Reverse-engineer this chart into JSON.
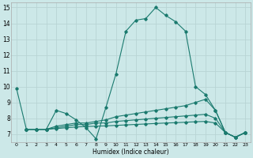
{
  "title": "",
  "xlabel": "Humidex (Indice chaleur)",
  "ylabel": "",
  "background_color": "#cce8e8",
  "grid_color": "#b8d4d4",
  "line_color": "#1a7a6e",
  "xlim": [
    -0.5,
    23.5
  ],
  "ylim": [
    6.5,
    15.3
  ],
  "xticks": [
    0,
    1,
    2,
    3,
    4,
    5,
    6,
    7,
    8,
    9,
    10,
    11,
    12,
    13,
    14,
    15,
    16,
    17,
    18,
    19,
    20,
    21,
    22,
    23
  ],
  "yticks": [
    7,
    8,
    9,
    10,
    11,
    12,
    13,
    14,
    15
  ],
  "series": [
    {
      "x": [
        0,
        1,
        2,
        3,
        4,
        5,
        6,
        7,
        8,
        9,
        10,
        11,
        12,
        13,
        14,
        15,
        16,
        17,
        18,
        19,
        20,
        21,
        22,
        23
      ],
      "y": [
        9.9,
        7.3,
        7.3,
        7.3,
        8.5,
        8.3,
        7.9,
        7.4,
        6.7,
        8.7,
        10.8,
        13.5,
        14.2,
        14.3,
        15.0,
        14.5,
        14.1,
        13.5,
        10.0,
        9.5,
        8.5,
        7.1,
        6.8,
        7.1
      ]
    },
    {
      "x": [
        1,
        2,
        3,
        4,
        5,
        6,
        7,
        8,
        9,
        10,
        11,
        12,
        13,
        14,
        15,
        16,
        17,
        18,
        19,
        20,
        21,
        22,
        23
      ],
      "y": [
        7.3,
        7.3,
        7.3,
        7.5,
        7.6,
        7.7,
        7.7,
        7.8,
        7.9,
        8.1,
        8.2,
        8.3,
        8.4,
        8.5,
        8.6,
        8.7,
        8.8,
        9.0,
        9.2,
        8.5,
        7.1,
        6.8,
        7.1
      ]
    },
    {
      "x": [
        1,
        2,
        3,
        4,
        5,
        6,
        7,
        8,
        9,
        10,
        11,
        12,
        13,
        14,
        15,
        16,
        17,
        18,
        19,
        20,
        21,
        22,
        23
      ],
      "y": [
        7.3,
        7.3,
        7.3,
        7.4,
        7.5,
        7.6,
        7.6,
        7.7,
        7.7,
        7.8,
        7.85,
        7.9,
        7.95,
        8.0,
        8.05,
        8.1,
        8.15,
        8.2,
        8.25,
        8.0,
        7.1,
        6.8,
        7.1
      ]
    },
    {
      "x": [
        1,
        2,
        3,
        4,
        5,
        6,
        7,
        8,
        9,
        10,
        11,
        12,
        13,
        14,
        15,
        16,
        17,
        18,
        19,
        20,
        21,
        22,
        23
      ],
      "y": [
        7.3,
        7.3,
        7.3,
        7.35,
        7.4,
        7.45,
        7.48,
        7.5,
        7.52,
        7.55,
        7.58,
        7.61,
        7.64,
        7.67,
        7.7,
        7.72,
        7.75,
        7.78,
        7.8,
        7.7,
        7.1,
        6.8,
        7.1
      ]
    }
  ]
}
